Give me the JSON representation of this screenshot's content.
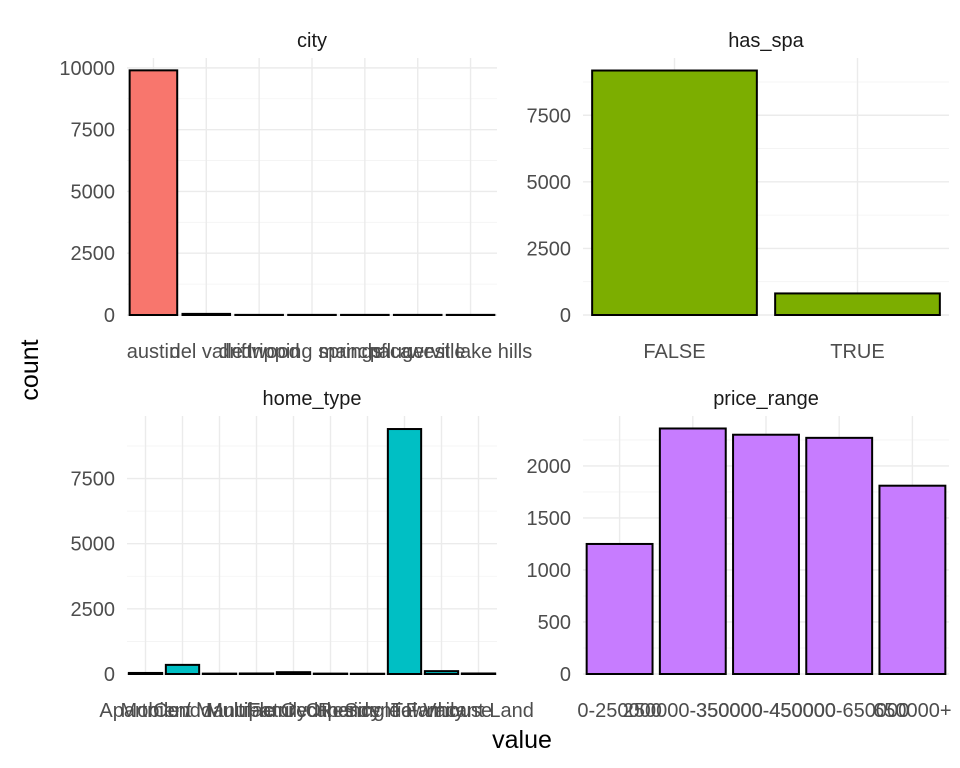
{
  "xlabel": "value",
  "ylabel": "count",
  "chart_data": [
    {
      "type": "bar",
      "title": "city",
      "color": "#F8766D",
      "categories": [
        "austin",
        "del valle",
        "driftwood",
        "dripping springs",
        "manchaca",
        "pflugerville",
        "west lake hills"
      ],
      "values": [
        9900,
        45,
        5,
        5,
        5,
        5,
        5
      ],
      "yticks": [
        0,
        2500,
        5000,
        7500,
        10000
      ],
      "ylim": [
        0,
        10400
      ]
    },
    {
      "type": "bar",
      "title": "has_spa",
      "color": "#7CAE00",
      "categories": [
        "FALSE",
        "TRUE"
      ],
      "values": [
        9180,
        810
      ],
      "yticks": [
        0,
        2500,
        5000,
        7500
      ],
      "ylim": [
        0,
        9650
      ]
    },
    {
      "type": "bar",
      "title": "home_type",
      "color": "#00BFC4",
      "categories": [
        "Apartment",
        "Condo",
        "Mobile / Manufactured",
        "MultiFamily",
        "Multiple Occupancy",
        "Other",
        "Residential",
        "Single Family",
        "Townhouse",
        "Vacant Land"
      ],
      "values": [
        40,
        350,
        15,
        20,
        70,
        15,
        10,
        9400,
        110,
        20
      ],
      "yticks": [
        0,
        2500,
        5000,
        7500
      ],
      "ylim": [
        0,
        9900
      ]
    },
    {
      "type": "bar",
      "title": "price_range",
      "color": "#C77CFF",
      "categories": [
        "0-250000",
        "250000-350000",
        "350000-450000",
        "450000-650000",
        "650000+"
      ],
      "values": [
        1250,
        2360,
        2300,
        2270,
        1810
      ],
      "yticks": [
        0,
        500,
        1000,
        1500,
        2000
      ],
      "ylim": [
        0,
        2480
      ]
    }
  ]
}
